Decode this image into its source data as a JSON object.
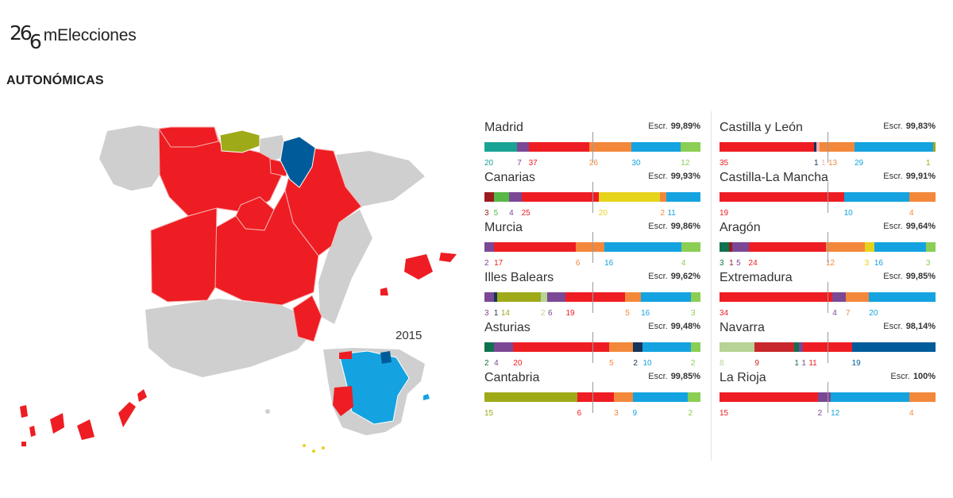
{
  "header": {
    "logo_mark_top": "26",
    "logo_mark_bottom": "6",
    "logo_text": "mElecciones",
    "section_title": "AUTONÓMICAS"
  },
  "map": {
    "inset_year": "2015",
    "colors": {
      "land_grey": "#cfcfcf",
      "pp_red": "#ee1d23",
      "prc_olive": "#9faa19",
      "upn_navy": "#005b9a",
      "psoe_blue": "#14a3e0",
      "cc_yellow": "#e6d31c"
    }
  },
  "colors": {
    "podemos_purple": "#7b4895",
    "pp": "#ee1d23",
    "cs": "#f3883b",
    "psoe": "#14a3e0",
    "iu": "#8bce54",
    "masmadrid": "#19a394",
    "ppn": "#9b1b1e",
    "dark": "#17345a",
    "yellow": "#e6d31c",
    "olive": "#9faa19",
    "navy": "#005b9a",
    "pink": "#f2b3b3",
    "green_dark": "#10714f",
    "sage": "#b7d395",
    "darkred": "#c8272b",
    "maroon": "#7a1519",
    "lime": "#57b846"
  },
  "escr_label": "Escr.",
  "regions": [
    {
      "name": "Madrid",
      "escr": "99,89%",
      "majority_pct": 0.5,
      "parties": [
        {
          "seats": 20,
          "label": "20",
          "color": "#19a394"
        },
        {
          "seats": 7,
          "label": "7",
          "color": "#7b4895"
        },
        {
          "seats": 37,
          "label": "37",
          "color": "#ee1d23"
        },
        {
          "seats": 26,
          "label": "26",
          "color": "#f3883b"
        },
        {
          "seats": 30,
          "label": "30",
          "color": "#14a3e0"
        },
        {
          "seats": 12,
          "label": "12",
          "color": "#8bce54"
        }
      ]
    },
    {
      "name": "Castilla y León",
      "escr": "99,83%",
      "majority_pct": 0.5,
      "parties": [
        {
          "seats": 35,
          "label": "35",
          "color": "#ee1d23"
        },
        {
          "seats": 1,
          "label": "1",
          "color": "#17345a"
        },
        {
          "seats": 1,
          "label": "1",
          "color": "#f2b3b3"
        },
        {
          "seats": 13,
          "label": "13",
          "color": "#f3883b"
        },
        {
          "seats": 29,
          "label": "29",
          "color": "#14a3e0"
        },
        {
          "seats": 1,
          "label": "1",
          "color": "#9faa19"
        }
      ]
    },
    {
      "name": "Canarias",
      "escr": "99,93%",
      "majority_pct": 0.5,
      "parties": [
        {
          "seats": 3,
          "label": "3",
          "color": "#9b1b1e"
        },
        {
          "seats": 5,
          "label": "5",
          "color": "#57b846"
        },
        {
          "seats": 4,
          "label": "4",
          "color": "#7b4895"
        },
        {
          "seats": 25,
          "label": "25",
          "color": "#ee1d23"
        },
        {
          "seats": 20,
          "label": "20",
          "color": "#e6d31c"
        },
        {
          "seats": 2,
          "label": "2",
          "color": "#f3883b"
        },
        {
          "seats": 11,
          "label": "11",
          "color": "#14a3e0"
        }
      ]
    },
    {
      "name": "Castilla-La Mancha",
      "escr": "99,91%",
      "majority_pct": 0.5,
      "parties": [
        {
          "seats": 19,
          "label": "19",
          "color": "#ee1d23"
        },
        {
          "seats": 10,
          "label": "10",
          "color": "#14a3e0"
        },
        {
          "seats": 4,
          "label": "4",
          "color": "#f3883b"
        }
      ]
    },
    {
      "name": "Murcia",
      "escr": "99,86%",
      "majority_pct": 0.5,
      "parties": [
        {
          "seats": 2,
          "label": "2",
          "color": "#7b4895"
        },
        {
          "seats": 17,
          "label": "17",
          "color": "#ee1d23"
        },
        {
          "seats": 6,
          "label": "6",
          "color": "#f3883b"
        },
        {
          "seats": 16,
          "label": "16",
          "color": "#14a3e0"
        },
        {
          "seats": 4,
          "label": "4",
          "color": "#8bce54"
        }
      ]
    },
    {
      "name": "Aragón",
      "escr": "99,64%",
      "majority_pct": 0.5,
      "parties": [
        {
          "seats": 3,
          "label": "3",
          "color": "#10714f"
        },
        {
          "seats": 1,
          "label": "1",
          "color": "#9b1b1e"
        },
        {
          "seats": 5,
          "label": "5",
          "color": "#7b4895"
        },
        {
          "seats": 24,
          "label": "24",
          "color": "#ee1d23"
        },
        {
          "seats": 12,
          "label": "12",
          "color": "#f3883b"
        },
        {
          "seats": 3,
          "label": "3",
          "color": "#e6d31c"
        },
        {
          "seats": 16,
          "label": "16",
          "color": "#14a3e0"
        },
        {
          "seats": 3,
          "label": "3",
          "color": "#8bce54"
        }
      ]
    },
    {
      "name": "Illes Balears",
      "escr": "99,62%",
      "majority_pct": 0.5,
      "parties": [
        {
          "seats": 3,
          "label": "3",
          "color": "#7b4895"
        },
        {
          "seats": 1,
          "label": "1",
          "color": "#17345a"
        },
        {
          "seats": 14,
          "label": "14",
          "color": "#9faa19"
        },
        {
          "seats": 2,
          "label": "2",
          "color": "#b7d395"
        },
        {
          "seats": 6,
          "label": "6",
          "color": "#7b4895"
        },
        {
          "seats": 19,
          "label": "19",
          "color": "#ee1d23"
        },
        {
          "seats": 5,
          "label": "5",
          "color": "#f3883b"
        },
        {
          "seats": 16,
          "label": "16",
          "color": "#14a3e0"
        },
        {
          "seats": 3,
          "label": "3",
          "color": "#8bce54"
        }
      ]
    },
    {
      "name": "Extremadura",
      "escr": "99,85%",
      "majority_pct": 0.5,
      "parties": [
        {
          "seats": 34,
          "label": "34",
          "color": "#ee1d23"
        },
        {
          "seats": 4,
          "label": "4",
          "color": "#7b4895"
        },
        {
          "seats": 7,
          "label": "7",
          "color": "#f3883b"
        },
        {
          "seats": 20,
          "label": "20",
          "color": "#14a3e0"
        }
      ]
    },
    {
      "name": "Asturias",
      "escr": "99,48%",
      "majority_pct": 0.5,
      "parties": [
        {
          "seats": 2,
          "label": "2",
          "color": "#10714f"
        },
        {
          "seats": 4,
          "label": "4",
          "color": "#7b4895"
        },
        {
          "seats": 20,
          "label": "20",
          "color": "#ee1d23"
        },
        {
          "seats": 5,
          "label": "5",
          "color": "#f3883b"
        },
        {
          "seats": 2,
          "label": "2",
          "color": "#17345a"
        },
        {
          "seats": 10,
          "label": "10",
          "color": "#14a3e0"
        },
        {
          "seats": 2,
          "label": "2",
          "color": "#8bce54"
        }
      ]
    },
    {
      "name": "Navarra",
      "escr": "98,14%",
      "majority_pct": 0.5,
      "parties": [
        {
          "seats": 8,
          "label": "8",
          "color": "#b7d395"
        },
        {
          "seats": 9,
          "label": "9",
          "color": "#c8272b"
        },
        {
          "seats": 1,
          "label": "1",
          "color": "#10714f"
        },
        {
          "seats": 1,
          "label": "1",
          "color": "#7b4895"
        },
        {
          "seats": 11,
          "label": "11",
          "color": "#ee1d23"
        },
        {
          "seats": 19,
          "label": "19",
          "color": "#005b9a"
        }
      ]
    },
    {
      "name": "Cantabria",
      "escr": "99,85%",
      "majority_pct": 0.5,
      "parties": [
        {
          "seats": 15,
          "label": "15",
          "color": "#9faa19"
        },
        {
          "seats": 6,
          "label": "6",
          "color": "#ee1d23"
        },
        {
          "seats": 3,
          "label": "3",
          "color": "#f3883b"
        },
        {
          "seats": 9,
          "label": "9",
          "color": "#14a3e0"
        },
        {
          "seats": 2,
          "label": "2",
          "color": "#8bce54"
        }
      ]
    },
    {
      "name": "La Rioja",
      "escr": "100%",
      "majority_pct": 0.5,
      "parties": [
        {
          "seats": 15,
          "label": "15",
          "color": "#ee1d23"
        },
        {
          "seats": 2,
          "label": "2",
          "color": "#7b4895"
        },
        {
          "seats": 12,
          "label": "12",
          "color": "#14a3e0"
        },
        {
          "seats": 4,
          "label": "4",
          "color": "#f3883b"
        }
      ]
    }
  ]
}
